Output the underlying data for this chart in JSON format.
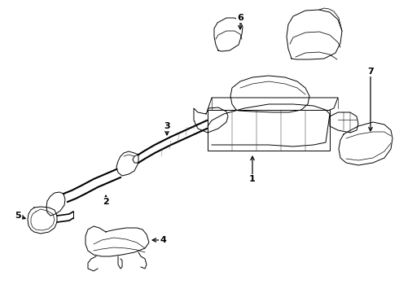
{
  "bg_color": "#ffffff",
  "line_color": "#000000",
  "fig_width": 4.9,
  "fig_height": 3.6,
  "dpi": 100,
  "label_fontsize": 8,
  "lw": 0.7
}
